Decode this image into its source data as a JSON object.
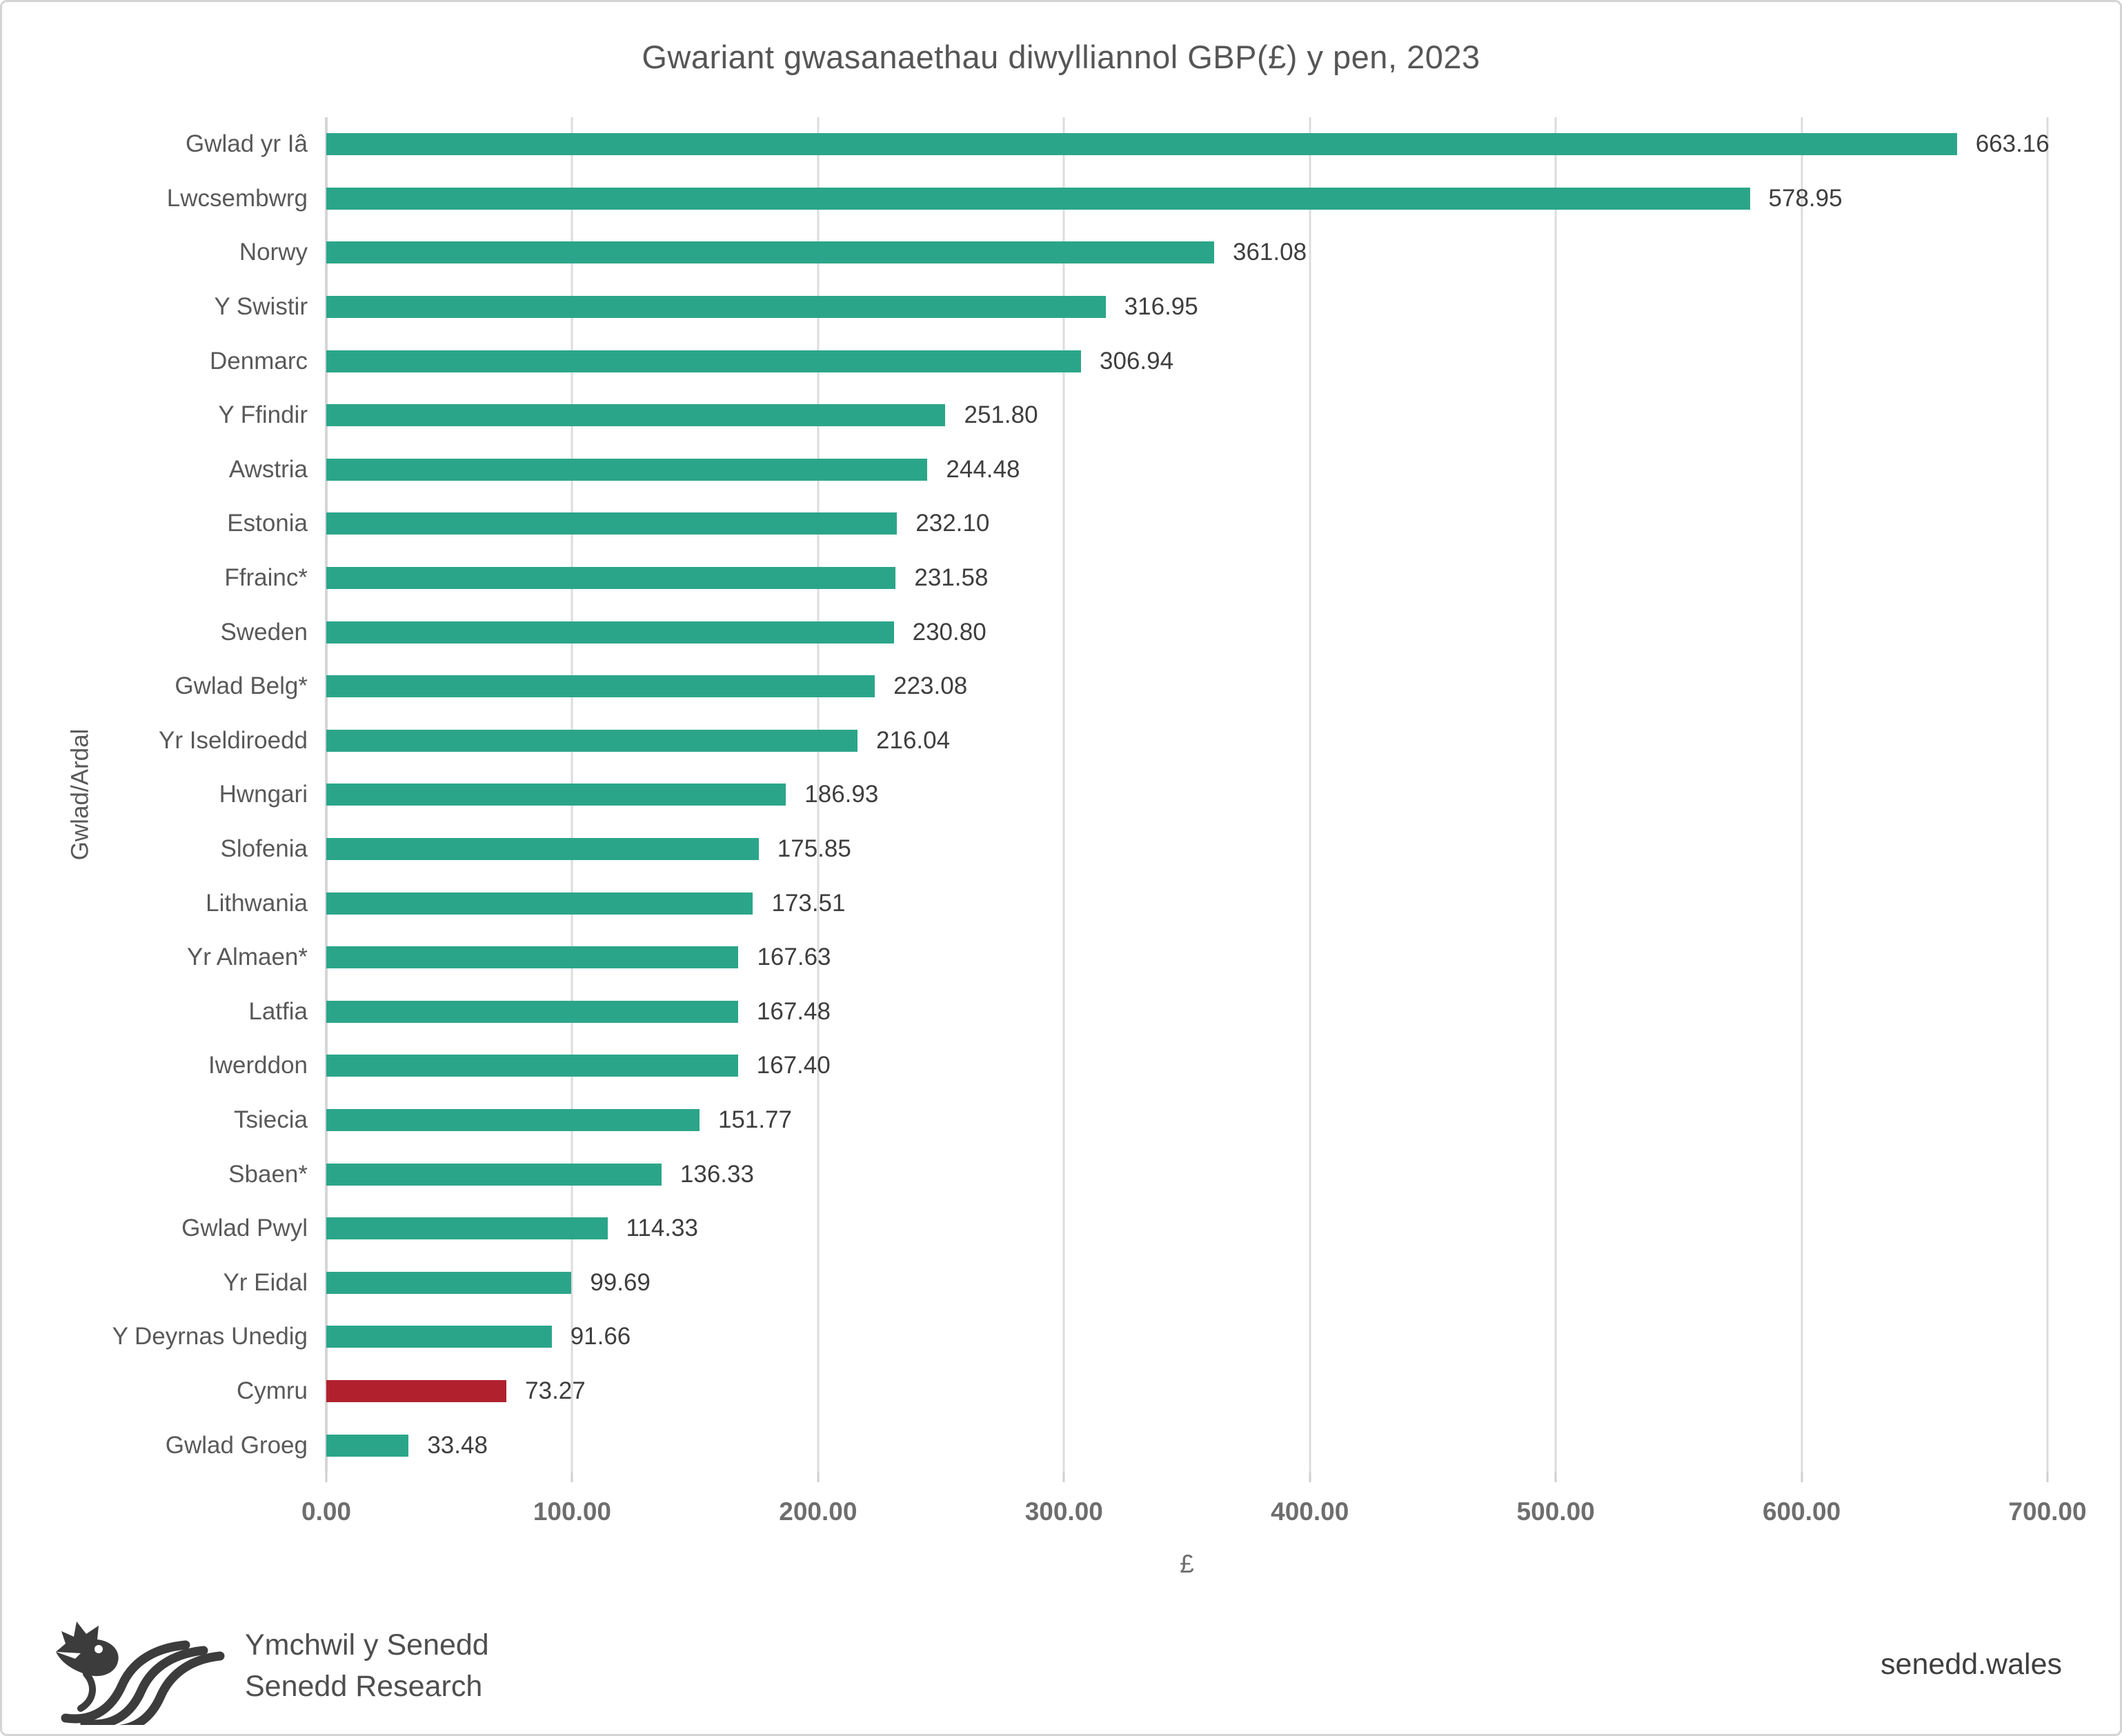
{
  "title": "Gwariant gwasanaethau diwylliannol GBP(£) y pen, 2023",
  "chart_data": {
    "type": "bar",
    "orientation": "horizontal",
    "title": "Gwariant gwasanaethau diwylliannol GBP(£) y pen, 2023",
    "categories": [
      "Gwlad yr Iâ",
      "Lwcsembwrg",
      "Norwy",
      "Y Swistir",
      "Denmarc",
      "Y Ffindir",
      "Awstria",
      "Estonia",
      "Ffrainc*",
      "Sweden",
      "Gwlad Belg*",
      "Yr Iseldiroedd",
      "Hwngari",
      "Slofenia",
      "Lithwania",
      "Yr Almaen*",
      "Latfia",
      "Iwerddon",
      "Tsiecia",
      "Sbaen*",
      "Gwlad Pwyl",
      "Yr Eidal",
      "Y Deyrnas Unedig",
      "Cymru",
      "Gwlad Groeg"
    ],
    "values": [
      663.16,
      578.95,
      361.08,
      316.95,
      306.94,
      251.8,
      244.48,
      232.1,
      231.58,
      230.8,
      223.08,
      216.04,
      186.93,
      175.85,
      173.51,
      167.63,
      167.48,
      167.4,
      151.77,
      136.33,
      114.33,
      99.69,
      91.66,
      73.27,
      33.48
    ],
    "values_display": [
      "663.16",
      "578.95",
      "361.08",
      "316.95",
      "306.94",
      "251.80",
      "244.48",
      "232.10",
      "231.58",
      "230.80",
      "223.08",
      "216.04",
      "186.93",
      "175.85",
      "173.51",
      "167.63",
      "167.48",
      "167.40",
      "151.77",
      "136.33",
      "114.33",
      "99.69",
      "91.66",
      "73.27",
      "33.48"
    ],
    "xlabel": "£",
    "ylabel": "Gwlad/Ardal",
    "xlim": [
      0,
      700
    ],
    "xticks": [
      "0.00",
      "100.00",
      "200.00",
      "300.00",
      "400.00",
      "500.00",
      "600.00",
      "700.00"
    ],
    "grid": true,
    "legend": "none",
    "bar_color": "#2ba58a",
    "highlight_color": "#b1212d",
    "highlight_category": "Cymru"
  },
  "footer": {
    "org_line1": "Ymchwil y Senedd",
    "org_line2": "Senedd Research",
    "website": "senedd.wales",
    "logo": "senedd-dragon-logo"
  }
}
